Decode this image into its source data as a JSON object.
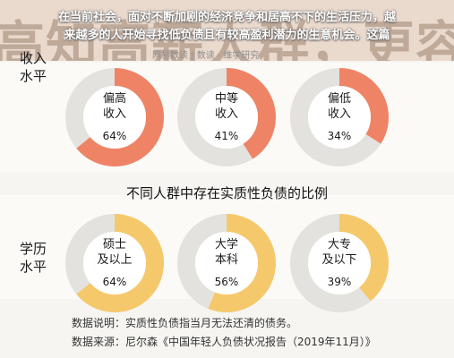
{
  "overlay_text": [
    "在当前社会，面对不断加剧的经济竞争和居高不下的生活压力，越",
    "来越多的人开始寻找低负债且有较高盈利潜力的生意机会。这篇"
  ],
  "background_title": "高知高薪人群，更容易产生实质性负债",
  "source_tag": "网易数读 | 数读 · 维学研究",
  "chart_data": {
    "type": "pie",
    "title": "不同人群中存在实质性负债的比例",
    "groups": [
      {
        "label": "收入\n水平",
        "color": "#ef8366",
        "items": [
          {
            "label": "偏高\n收入",
            "value": 64,
            "value_label": "64%"
          },
          {
            "label": "中等\n收入",
            "value": 41,
            "value_label": "41%"
          },
          {
            "label": "偏低\n收入",
            "value": 34,
            "value_label": "34%"
          }
        ]
      },
      {
        "label": "学历\n水平",
        "color": "#f5c96b",
        "items": [
          {
            "label": "硕士\n及以上",
            "value": 64,
            "value_label": "64%"
          },
          {
            "label": "大学\n本科",
            "value": 56,
            "value_label": "56%"
          },
          {
            "label": "大专\n及以下",
            "value": 39,
            "value_label": "39%"
          }
        ]
      }
    ]
  },
  "colors": {
    "track": "#e4e2de",
    "income": "#ef8366",
    "education": "#f5c96b"
  },
  "footer": {
    "note": "数据说明：实质性负债指当月无法还清的债务。",
    "source": "数据来源：尼尔森《中国年轻人负债状况报告（2019年11月）》"
  }
}
